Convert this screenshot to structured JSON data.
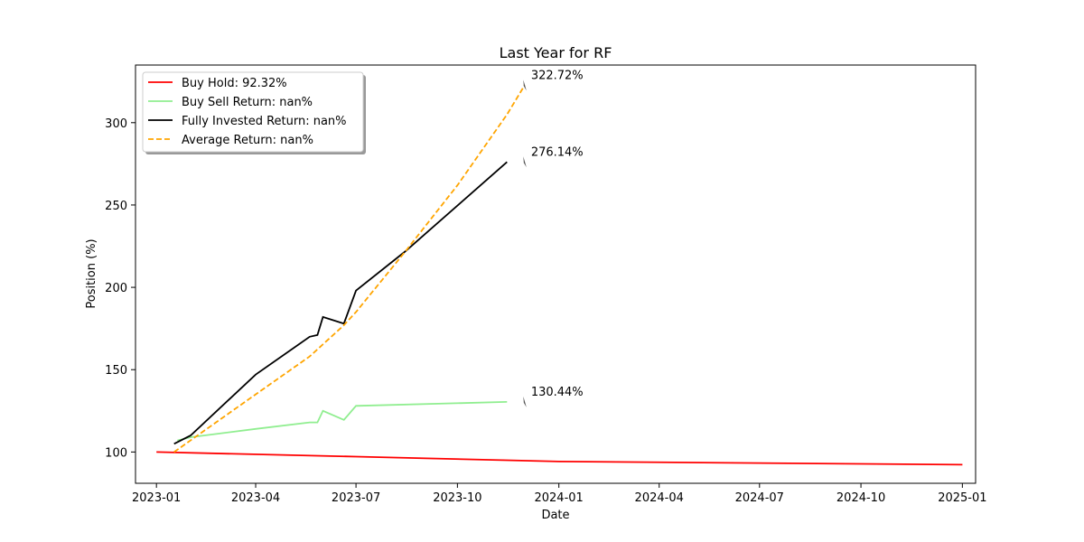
{
  "chart_data": {
    "type": "line",
    "title": "Last Year for RF",
    "xlabel": "Date",
    "ylabel": "Position (%)",
    "xlim": [
      "2022-12-13",
      "2025-01-13"
    ],
    "ylim": [
      81,
      335
    ],
    "x_ticks": [
      "2023-01",
      "2023-04",
      "2023-07",
      "2023-10",
      "2024-01",
      "2024-04",
      "2024-07",
      "2024-10",
      "2025-01"
    ],
    "y_ticks": [
      100,
      150,
      200,
      250,
      300
    ],
    "grid": false,
    "legend_position": "top-left",
    "series": [
      {
        "name": "Buy Hold: 92.32%",
        "color": "#ff0000",
        "style": "solid",
        "points": [
          [
            "2023-01-01",
            100
          ],
          [
            "2023-07-01",
            97.2
          ],
          [
            "2024-01-01",
            94.2
          ],
          [
            "2024-07-01",
            93.3
          ],
          [
            "2025-01-01",
            92.32
          ]
        ]
      },
      {
        "name": "Buy Sell Return: nan%",
        "color": "#90ee90",
        "style": "solid",
        "points": [
          [
            "2023-01-20",
            107
          ],
          [
            "2023-02-01",
            109
          ],
          [
            "2023-04-01",
            114
          ],
          [
            "2023-05-20",
            118
          ],
          [
            "2023-05-27",
            118
          ],
          [
            "2023-06-01",
            125
          ],
          [
            "2023-06-20",
            119.5
          ],
          [
            "2023-07-01",
            128
          ],
          [
            "2023-11-15",
            130.44
          ]
        ]
      },
      {
        "name": "Fully Invested Return: nan%",
        "color": "#000000",
        "style": "solid",
        "points": [
          [
            "2023-01-17",
            105
          ],
          [
            "2023-02-01",
            110
          ],
          [
            "2023-04-01",
            147
          ],
          [
            "2023-05-20",
            170
          ],
          [
            "2023-05-27",
            171
          ],
          [
            "2023-06-01",
            182
          ],
          [
            "2023-06-20",
            178
          ],
          [
            "2023-07-01",
            198
          ],
          [
            "2023-08-15",
            222
          ],
          [
            "2023-11-15",
            276.14
          ]
        ]
      },
      {
        "name": "Average Return: nan%",
        "color": "#ffa500",
        "style": "dashed",
        "points": [
          [
            "2023-01-17",
            100
          ],
          [
            "2023-04-01",
            135
          ],
          [
            "2023-05-20",
            158
          ],
          [
            "2023-06-20",
            177
          ],
          [
            "2023-07-01",
            185
          ],
          [
            "2023-08-15",
            222
          ],
          [
            "2023-10-01",
            262
          ],
          [
            "2023-11-15",
            305
          ],
          [
            "2023-12-01",
            322.72
          ]
        ]
      }
    ],
    "annotations": [
      {
        "text": "322.72%",
        "x": "2023-12-01",
        "y": 322.72
      },
      {
        "text": "276.14%",
        "x": "2023-12-01",
        "y": 276.14
      },
      {
        "text": "130.44%",
        "x": "2023-12-01",
        "y": 130.44
      }
    ]
  }
}
